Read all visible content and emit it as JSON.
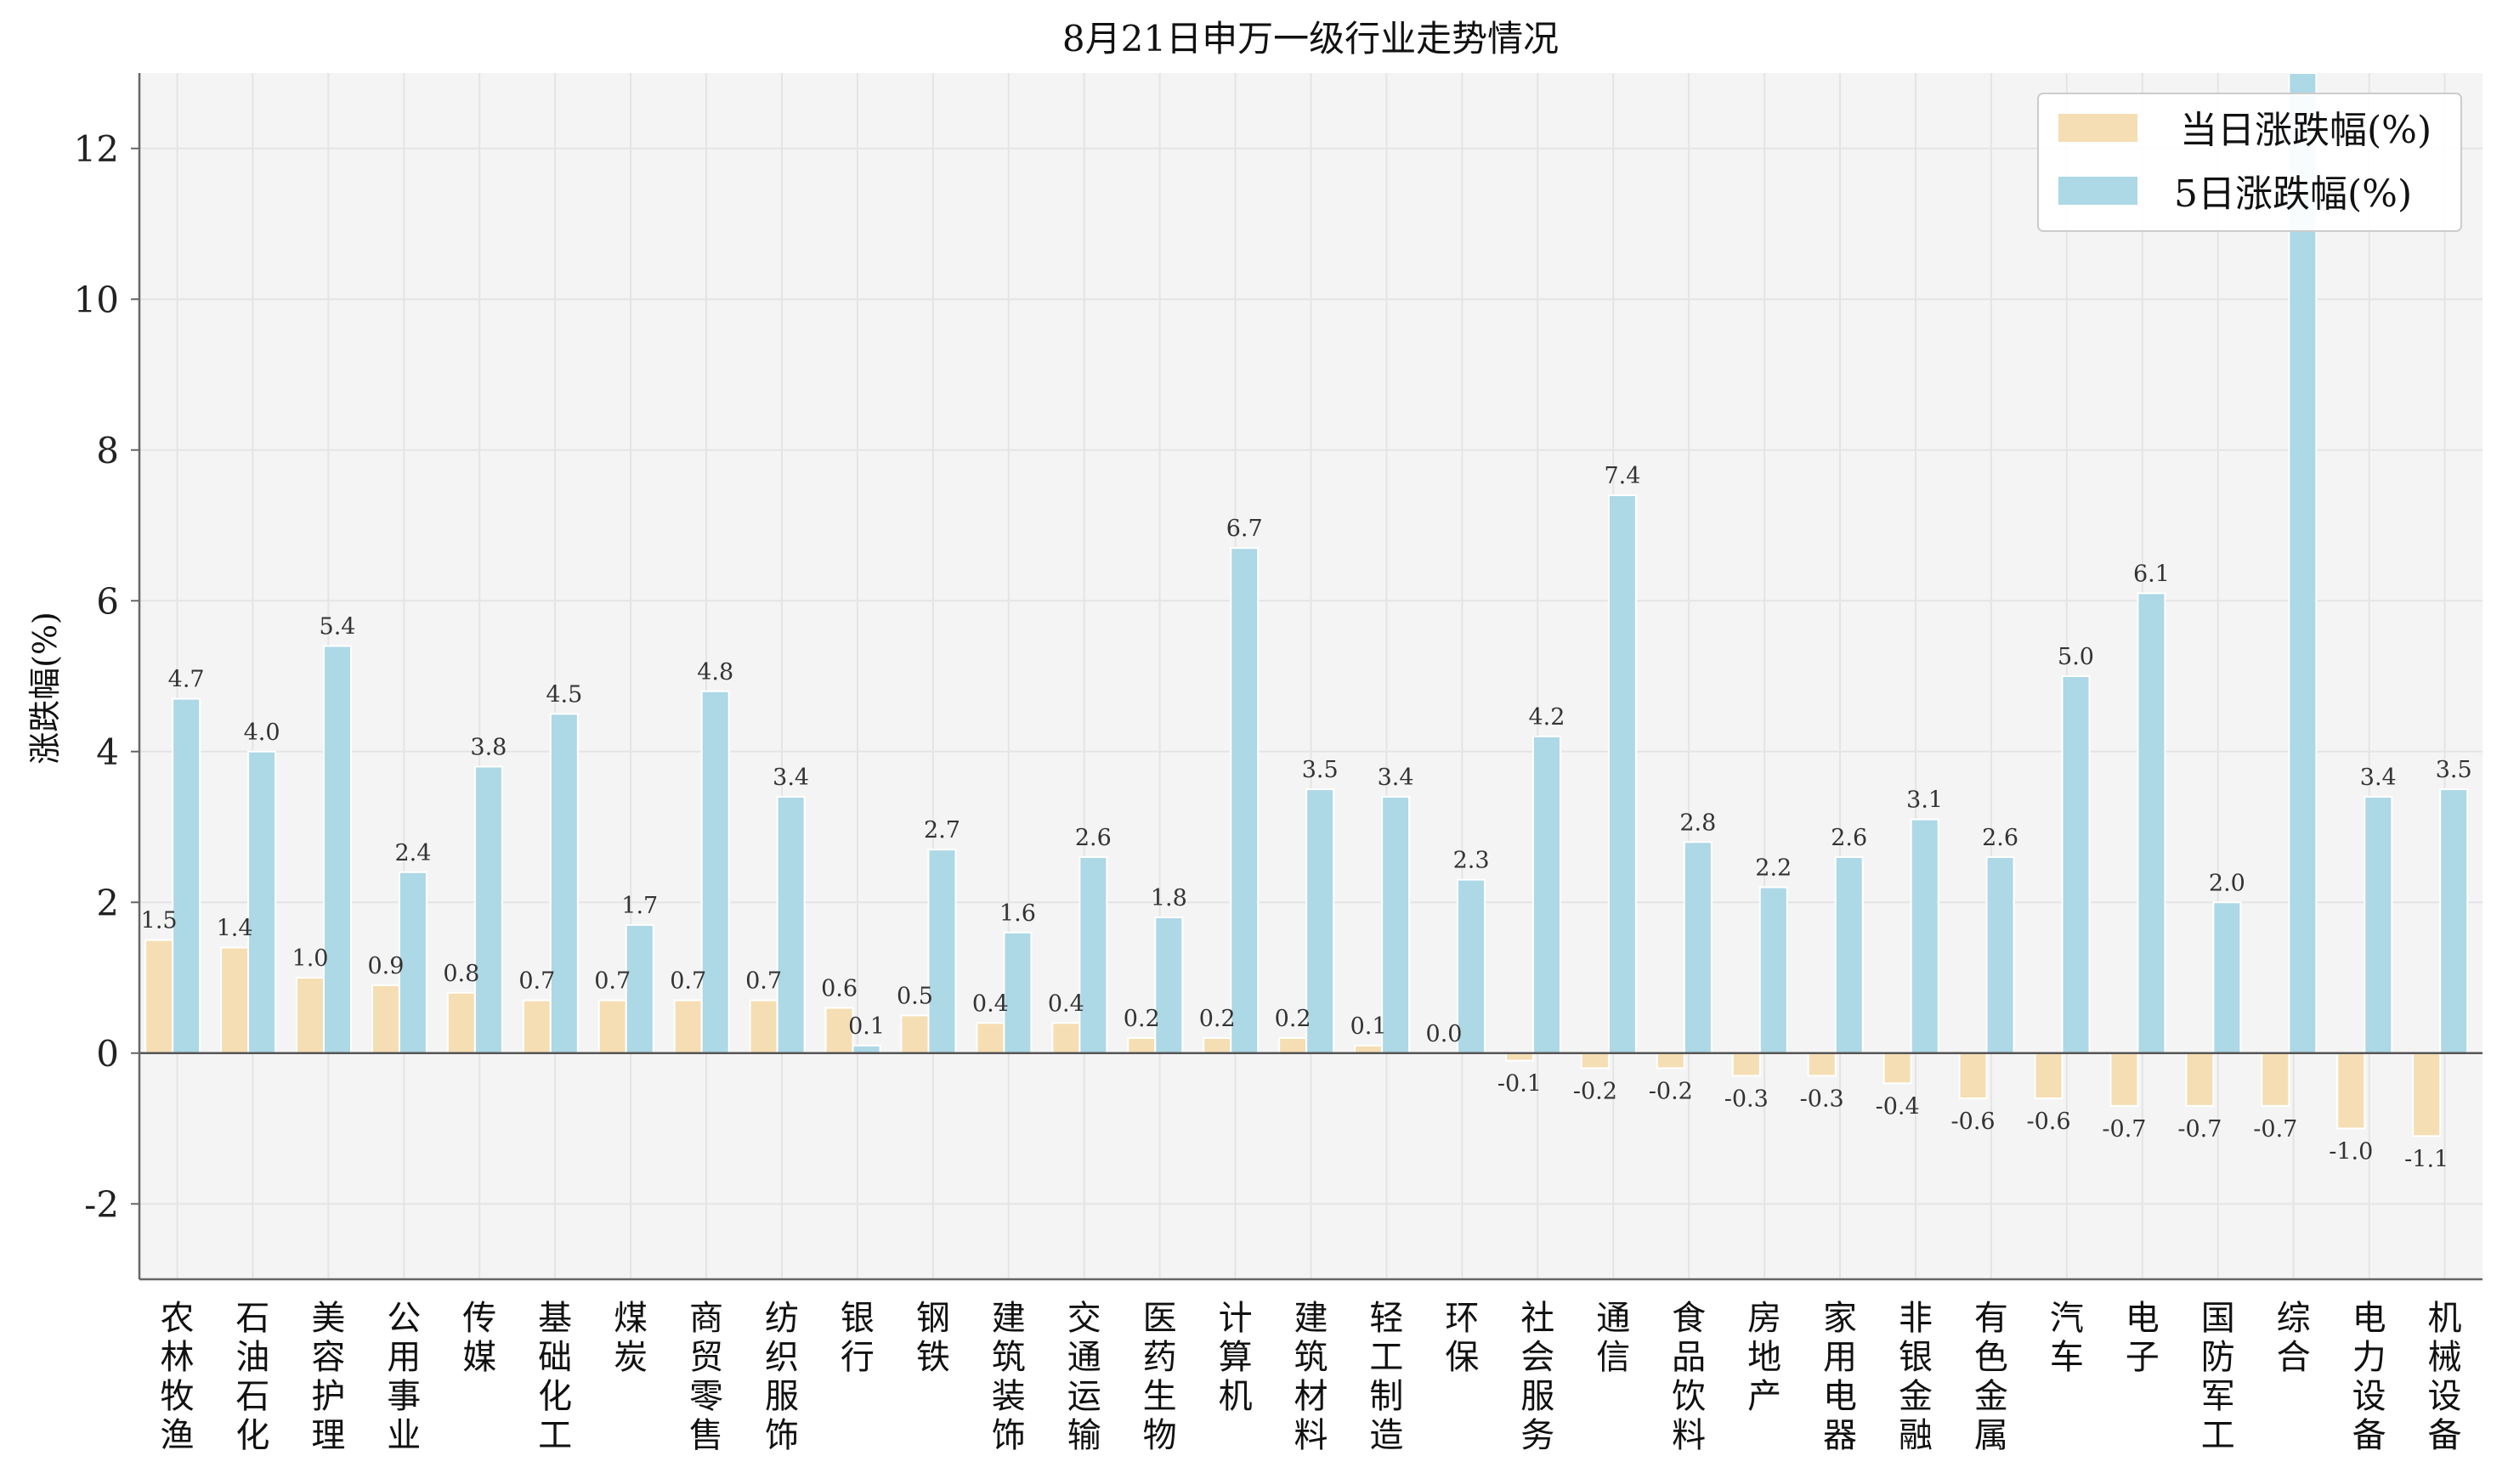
{
  "chart_data": {
    "type": "bar",
    "title": "8月21日申万一级行业走势情况",
    "xlabel": "",
    "ylabel": "涨跌幅(%)",
    "ylim": [
      -3,
      13
    ],
    "yticks": [
      -2,
      0,
      2,
      4,
      6,
      8,
      10,
      12
    ],
    "grid": true,
    "legend_position": "top-right",
    "categories": [
      "农林牧渔",
      "石油石化",
      "美容护理",
      "公用事业",
      "传媒",
      "基础化工",
      "煤炭",
      "商贸零售",
      "纺织服饰",
      "银行",
      "钢铁",
      "建筑装饰",
      "交通运输",
      "医药生物",
      "计算机",
      "建筑材料",
      "轻工制造",
      "环保",
      "社会服务",
      "通信",
      "食品饮料",
      "房地产",
      "家用电器",
      "非银金融",
      "有色金属",
      "汽车",
      "电子",
      "国防军工",
      "综合",
      "电力设备",
      "机械设备"
    ],
    "series": [
      {
        "name": "当日涨跌幅(%)",
        "color": "#F5DEB3",
        "values": [
          1.5,
          1.4,
          1.0,
          0.9,
          0.8,
          0.7,
          0.7,
          0.7,
          0.7,
          0.6,
          0.5,
          0.4,
          0.4,
          0.2,
          0.2,
          0.2,
          0.1,
          0.0,
          -0.1,
          -0.2,
          -0.2,
          -0.3,
          -0.3,
          -0.4,
          -0.6,
          -0.6,
          -0.7,
          -0.7,
          -0.7,
          -1.0,
          -1.1
        ],
        "labels": [
          "1.5",
          "1.4",
          "1.0",
          "0.9",
          "0.8",
          "0.7",
          "0.7",
          "0.7",
          "0.7",
          "0.6",
          "0.5",
          "0.4",
          "0.4",
          "0.2",
          "0.2",
          "0.2",
          "0.1",
          "0.0",
          "-0.1",
          "-0.2",
          "-0.2",
          "-0.3",
          "-0.3",
          "-0.4",
          "-0.6",
          "-0.6",
          "-0.7",
          "-0.7",
          "-0.7",
          "-1.0",
          "-1.1"
        ]
      },
      {
        "name": "5日涨跌幅(%)",
        "color": "#ADD8E6",
        "values": [
          4.7,
          4.0,
          5.4,
          2.4,
          3.8,
          4.5,
          1.7,
          4.8,
          3.4,
          0.1,
          2.7,
          1.6,
          2.6,
          1.8,
          6.7,
          3.5,
          3.4,
          2.3,
          4.2,
          7.4,
          2.8,
          2.2,
          2.6,
          3.1,
          2.6,
          5.0,
          6.1,
          2.0,
          13.0,
          3.4,
          3.5
        ],
        "labels": [
          "4.7",
          "4.0",
          "5.4",
          "2.4",
          "3.8",
          "4.5",
          "1.7",
          "4.8",
          "3.4",
          "0.1",
          "2.7",
          "1.6",
          "2.6",
          "1.8",
          "6.7",
          "3.5",
          "3.4",
          "2.3",
          "4.2",
          "7.4",
          "2.8",
          "2.2",
          "2.6",
          "3.1",
          "2.6",
          "5.0",
          "6.1",
          "2.0",
          "",
          "3.4",
          "3.5"
        ]
      }
    ]
  },
  "colors": {
    "plot_background": "#F4F4F4",
    "grid": "#E4E4E4",
    "axis": "#666666",
    "zero_line": "#555555"
  }
}
